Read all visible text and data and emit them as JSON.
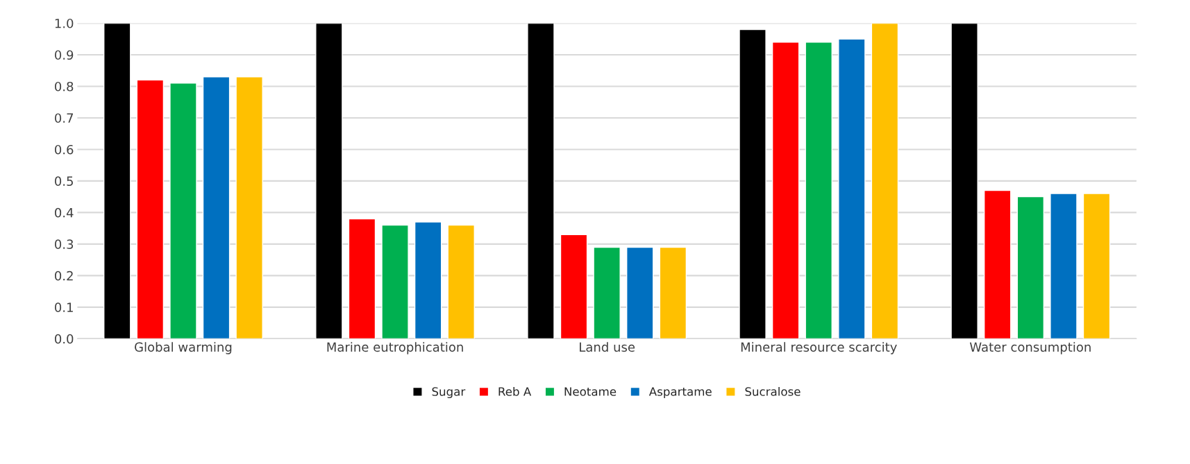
{
  "chart_data": {
    "type": "bar",
    "categories": [
      "Global warming",
      "Marine eutrophication",
      "Land use",
      "Mineral resource scarcity",
      "Water consumption"
    ],
    "series": [
      {
        "name": "Sugar",
        "color": "#000000",
        "values": [
          1.0,
          1.0,
          1.0,
          0.98,
          1.0
        ]
      },
      {
        "name": "Reb A",
        "color": "#ff0000",
        "values": [
          0.82,
          0.38,
          0.33,
          0.94,
          0.47
        ]
      },
      {
        "name": "Neotame",
        "color": "#00b050",
        "values": [
          0.81,
          0.36,
          0.29,
          0.94,
          0.45
        ]
      },
      {
        "name": "Aspartame",
        "color": "#0070c0",
        "values": [
          0.83,
          0.37,
          0.29,
          0.95,
          0.46
        ]
      },
      {
        "name": "Sucralose",
        "color": "#ffc000",
        "values": [
          0.83,
          0.36,
          0.29,
          1.0,
          0.46
        ]
      }
    ],
    "ylim": [
      0,
      1.0
    ],
    "yticks": [
      {
        "value": 0,
        "label": "0.0"
      },
      {
        "value": 0.1,
        "label": "0.1"
      },
      {
        "value": 0.2,
        "label": "0.2"
      },
      {
        "value": 0.3,
        "label": "0.3"
      },
      {
        "value": 0.4,
        "label": "0.4"
      },
      {
        "value": 0.5,
        "label": "0.5"
      },
      {
        "value": 0.6,
        "label": "0.6"
      },
      {
        "value": 0.7,
        "label": "0.7"
      },
      {
        "value": 0.8,
        "label": "0.8"
      },
      {
        "value": 0.9,
        "label": "0.9"
      },
      {
        "value": 1.0,
        "label": "1.0"
      }
    ],
    "grid": "y",
    "legend": "bottom"
  }
}
